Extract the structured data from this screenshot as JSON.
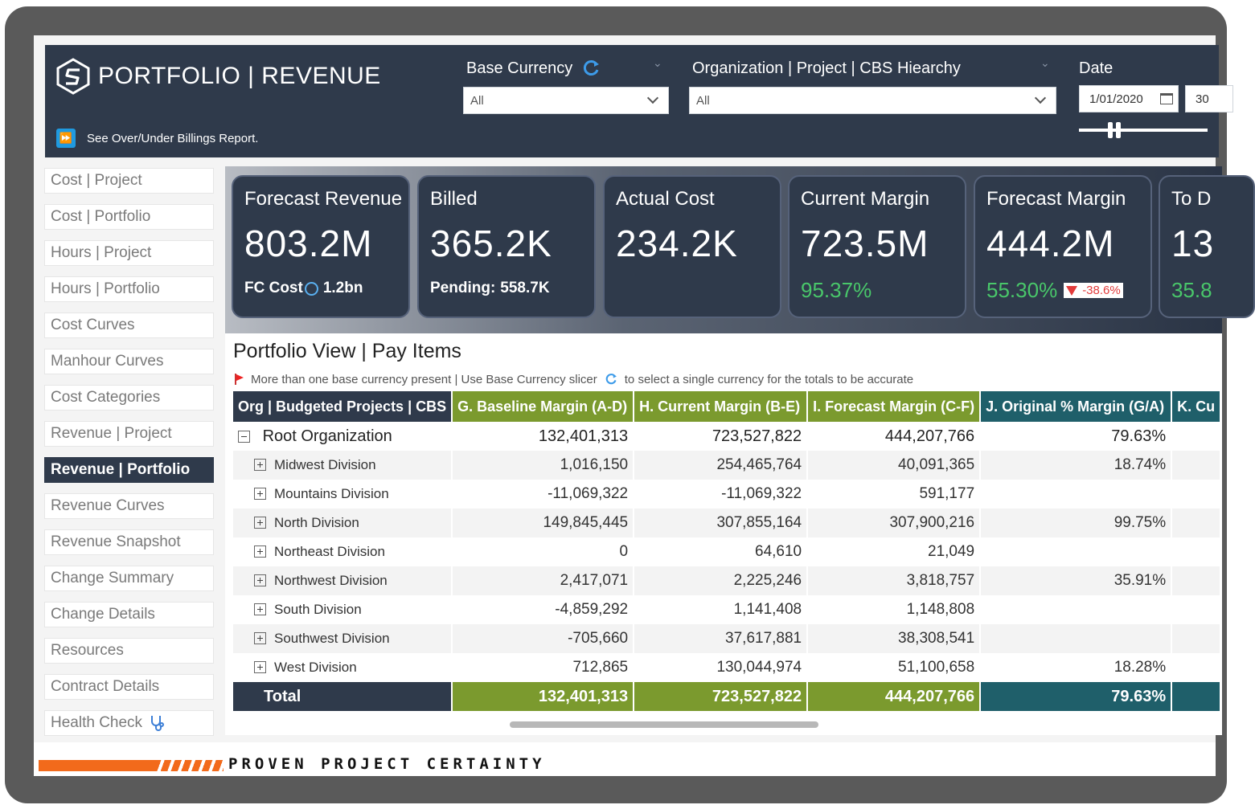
{
  "app": {
    "title": "PORTFOLIO | REVENUE",
    "billing_link": "See Over/Under Billings Report."
  },
  "slicers": {
    "base_currency": {
      "label": "Base Currency",
      "value": "All"
    },
    "org_hierarchy": {
      "label": "Organization | Project | CBS Hiearchy",
      "value": "All"
    },
    "date": {
      "label": "Date",
      "start": "1/01/2020",
      "end": "30"
    }
  },
  "nav": [
    {
      "label": "Cost | Project"
    },
    {
      "label": "Cost | Portfolio"
    },
    {
      "label": "Hours | Project"
    },
    {
      "label": "Hours | Portfolio"
    },
    {
      "label": "Cost Curves"
    },
    {
      "label": "Manhour Curves"
    },
    {
      "label": "Cost Categories"
    },
    {
      "label": "Revenue | Project"
    },
    {
      "label": "Revenue | Portfolio"
    },
    {
      "label": "Revenue Curves"
    },
    {
      "label": "Revenue Snapshot"
    },
    {
      "label": "Change Summary"
    },
    {
      "label": "Change Details"
    },
    {
      "label": "Resources"
    },
    {
      "label": "Contract Details"
    },
    {
      "label": "Health Check"
    }
  ],
  "active_nav": "Revenue | Portfolio",
  "cards": [
    {
      "title": "Forecast Revenue",
      "value": "803.2M",
      "sub_label": "FC Cost",
      "sub_value": "1.2bn"
    },
    {
      "title": "Billed",
      "value": "365.2K",
      "sub_label": "Pending:",
      "sub_value": "558.7K"
    },
    {
      "title": "Actual Cost",
      "value": "234.2K"
    },
    {
      "title": "Current Margin",
      "value": "723.5M",
      "pct": "95.37%"
    },
    {
      "title": "Forecast Margin",
      "value": "444.2M",
      "pct": "55.30%",
      "delta": "-38.6%"
    },
    {
      "title": "To D",
      "value": "13",
      "pct": "35.8"
    }
  ],
  "table": {
    "title": "Portfolio View | Pay Items",
    "warning": "More than one base currency present | Use Base Currency slicer",
    "warning_tail": "to select a single currency for the totals to be accurate",
    "columns": [
      "Org | Budgeted Projects | CBS",
      "G. Baseline Margin (A-D)",
      "H. Current Margin (B-E)",
      "I. Forecast Margin (C-F)",
      "J. Original % Margin (G/A)",
      "K. Cu"
    ],
    "root": {
      "name": "Root Organization",
      "g": "132,401,313",
      "h": "723,527,822",
      "i": "444,207,766",
      "j": "79.63%"
    },
    "rows": [
      {
        "name": "Midwest Division",
        "g": "1,016,150",
        "h": "254,465,764",
        "i": "40,091,365",
        "j": "18.74%"
      },
      {
        "name": "Mountains Division",
        "g": "-11,069,322",
        "h": "-11,069,322",
        "i": "591,177",
        "j": ""
      },
      {
        "name": "North Division",
        "g": "149,845,445",
        "h": "307,855,164",
        "i": "307,900,216",
        "j": "99.75%"
      },
      {
        "name": "Northeast Division",
        "g": "0",
        "h": "64,610",
        "i": "21,049",
        "j": ""
      },
      {
        "name": "Northwest Division",
        "g": "2,417,071",
        "h": "2,225,246",
        "i": "3,818,757",
        "j": "35.91%"
      },
      {
        "name": "South Division",
        "g": "-4,859,292",
        "h": "1,141,408",
        "i": "1,148,808",
        "j": ""
      },
      {
        "name": "Southwest Division",
        "g": "-705,660",
        "h": "37,617,881",
        "i": "38,308,541",
        "j": ""
      },
      {
        "name": "West Division",
        "g": "712,865",
        "h": "130,044,974",
        "i": "51,100,658",
        "j": "18.28%"
      }
    ],
    "total": {
      "name": "Total",
      "g": "132,401,313",
      "h": "723,527,822",
      "i": "444,207,766",
      "j": "79.63%"
    }
  },
  "footer": {
    "tagline": "PROVEN PROJECT CERTAINTY"
  },
  "colors": {
    "header_bg": "#2f3a4b",
    "org_col": "#2f3a4b",
    "margin_cols": "#7b9a2e",
    "pct_col": "#1f5f6a",
    "positive": "#49c76a",
    "negative": "#e23b3b",
    "accent": "#f26a1b"
  },
  "icons": {
    "logo": "hexagon-s-logo-icon",
    "billing": "fast-forward-icon",
    "refresh": "refresh-icon",
    "calendar": "calendar-icon",
    "globe": "globe-icon",
    "health": "stethoscope-icon",
    "flag": "flag-icon"
  }
}
